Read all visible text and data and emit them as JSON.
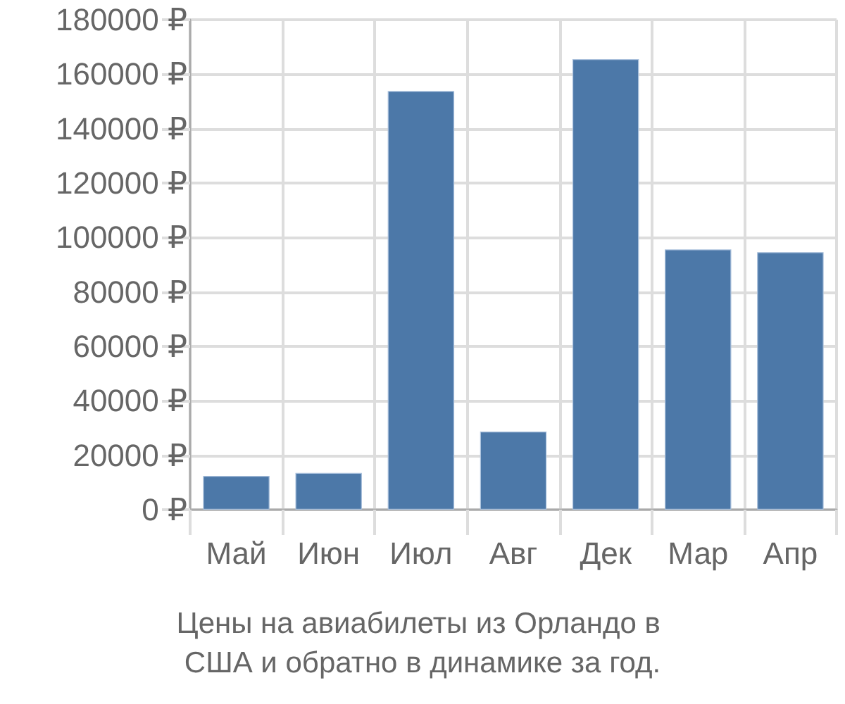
{
  "chart_data": {
    "type": "bar",
    "title": "Цены на авиабилеты из Орландо в США и обратно в динамике за год.",
    "categories": [
      "Май",
      "Июн",
      "Июл",
      "Авг",
      "Дек",
      "Мар",
      "Апр"
    ],
    "values": [
      12400,
      13500,
      153800,
      28700,
      165500,
      95600,
      94600
    ],
    "color": "#4c78a8",
    "ylim": [
      0,
      180000
    ],
    "yticks": [
      {
        "value": 0,
        "label": "0 ₽"
      },
      {
        "value": 20000,
        "label": "20000 ₽"
      },
      {
        "value": 40000,
        "label": "40000 ₽"
      },
      {
        "value": 60000,
        "label": "60000 ₽"
      },
      {
        "value": 80000,
        "label": "80000 ₽"
      },
      {
        "value": 100000,
        "label": "100000 ₽"
      },
      {
        "value": 120000,
        "label": "120000 ₽"
      },
      {
        "value": 140000,
        "label": "140000 ₽"
      },
      {
        "value": 160000,
        "label": "160000 ₽"
      },
      {
        "value": 180000,
        "label": "180000 ₽"
      }
    ],
    "grid": true
  }
}
